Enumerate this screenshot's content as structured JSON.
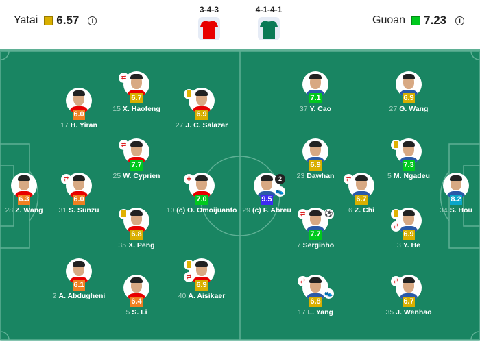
{
  "header": {
    "home": {
      "name": "Yatai",
      "avg_rating": "6.57",
      "rating_color": "#d9af00",
      "formation": "3-4-3",
      "shirt_color": "#e80000"
    },
    "away": {
      "name": "Guoan",
      "avg_rating": "7.23",
      "rating_color": "#00c91e",
      "formation": "4-1-4-1",
      "shirt_color": "#0a7a56"
    }
  },
  "players": [
    {
      "team": "home",
      "number": "28",
      "name": "Z. Wang",
      "rating": "6.3",
      "color": "#f08021",
      "events": []
    },
    {
      "team": "home",
      "number": "31",
      "name": "S. Sunzu",
      "rating": "6.0",
      "color": "#f08021",
      "events": [
        "sub"
      ]
    },
    {
      "team": "home",
      "number": "17",
      "name": "H. Yiran",
      "rating": "6.0",
      "color": "#f08021",
      "events": []
    },
    {
      "team": "home",
      "number": "15",
      "name": "X. Haofeng",
      "rating": "6.7",
      "color": "#d9af00",
      "events": [
        "sub"
      ]
    },
    {
      "team": "home",
      "number": "27",
      "name": "J. C. Salazar",
      "rating": "6.9",
      "color": "#d9af00",
      "events": [
        "yellow-card"
      ]
    },
    {
      "team": "home",
      "number": "25",
      "name": "W. Cyprien",
      "rating": "7.7",
      "color": "#00c91e",
      "events": [
        "sub"
      ]
    },
    {
      "team": "home",
      "number": "10",
      "name": "(c) O. Omoijuanfo",
      "rating": "7.0",
      "color": "#00c91e",
      "events": [
        "injury-sub"
      ]
    },
    {
      "team": "home",
      "number": "35",
      "name": "X. Peng",
      "rating": "6.8",
      "color": "#d9af00",
      "events": [
        "yellow-card"
      ]
    },
    {
      "team": "home",
      "number": "2",
      "name": "A. Abdugheni",
      "rating": "6.1",
      "color": "#f08021",
      "events": []
    },
    {
      "team": "home",
      "number": "5",
      "name": "S. Li",
      "rating": "6.4",
      "color": "#f08021",
      "events": []
    },
    {
      "team": "home",
      "number": "40",
      "name": "A. Aisikaer",
      "rating": "6.9",
      "color": "#d9af00",
      "events": [
        "yellow-card",
        "sub"
      ]
    },
    {
      "team": "away",
      "number": "37",
      "name": "Y. Cao",
      "rating": "7.1",
      "color": "#00c91e",
      "events": []
    },
    {
      "team": "away",
      "number": "27",
      "name": "G. Wang",
      "rating": "6.9",
      "color": "#d9af00",
      "events": []
    },
    {
      "team": "away",
      "number": "23",
      "name": "Dawhan",
      "rating": "6.9",
      "color": "#d9af00",
      "events": []
    },
    {
      "team": "away",
      "number": "5",
      "name": "M. Ngadeu",
      "rating": "7.3",
      "color": "#00c91e",
      "events": [
        "yellow-card"
      ]
    },
    {
      "team": "away",
      "number": "29",
      "name": "(c) F. Abreu",
      "rating": "9.5",
      "color": "#3d2cf0",
      "events": [
        "goals",
        "assist"
      ],
      "goals": "2"
    },
    {
      "team": "away",
      "number": "6",
      "name": "Z. Chi",
      "rating": "6.7",
      "color": "#d9af00",
      "events": [
        "sub"
      ]
    },
    {
      "team": "away",
      "number": "34",
      "name": "S. Hou",
      "rating": "8.2",
      "color": "#0aa6c9",
      "events": []
    },
    {
      "team": "away",
      "number": "7",
      "name": "Serginho",
      "rating": "7.7",
      "color": "#00c91e",
      "events": [
        "sub",
        "goal"
      ]
    },
    {
      "team": "away",
      "number": "3",
      "name": "Y. He",
      "rating": "6.9",
      "color": "#d9af00",
      "events": [
        "yellow-card",
        "sub"
      ]
    },
    {
      "team": "away",
      "number": "17",
      "name": "L. Yang",
      "rating": "6.8",
      "color": "#d9af00",
      "events": [
        "sub",
        "assist"
      ]
    },
    {
      "team": "away",
      "number": "35",
      "name": "J. Wenhao",
      "rating": "6.7",
      "color": "#d9af00",
      "events": [
        "sub"
      ]
    }
  ]
}
